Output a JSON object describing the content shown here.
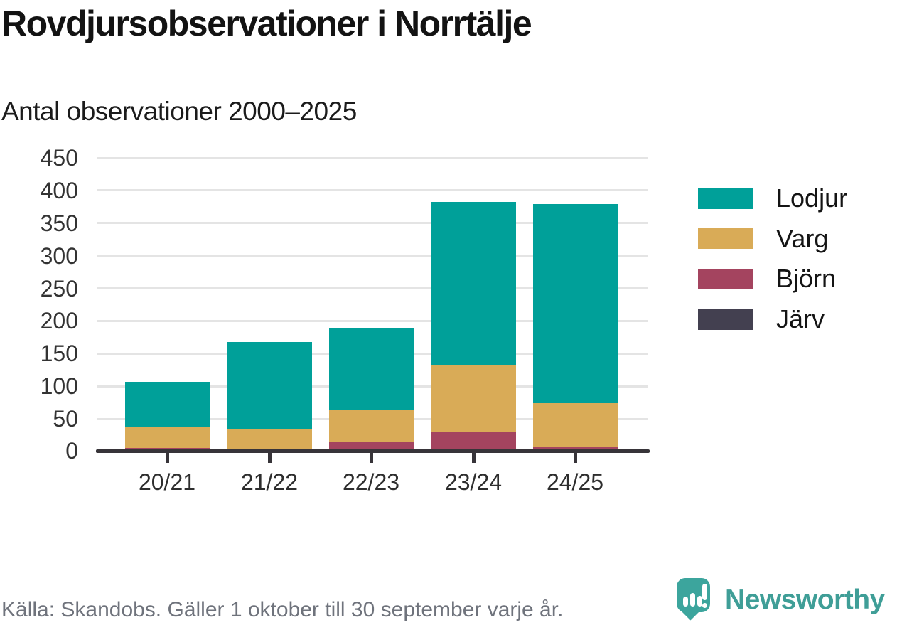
{
  "header": {
    "title": "Rovdjursobservationer i Norrtälje",
    "subtitle": "Antal observationer 2000–2025"
  },
  "chart_data": {
    "type": "bar",
    "stacked": true,
    "title": "Rovdjursobservationer i Norrtälje",
    "subtitle": "Antal observationer 2000–2025",
    "categories": [
      "20/21",
      "21/22",
      "22/23",
      "23/24",
      "24/25"
    ],
    "series": [
      {
        "name": "Lodjur",
        "color": "#00A099",
        "values": [
          69,
          134,
          127,
          250,
          305
        ]
      },
      {
        "name": "Varg",
        "color": "#D9AB57",
        "values": [
          33,
          32,
          48,
          103,
          66
        ]
      },
      {
        "name": "Björn",
        "color": "#A4445F",
        "values": [
          5,
          2,
          15,
          30,
          8
        ]
      },
      {
        "name": "Järv",
        "color": "#434050",
        "values": [
          0,
          0,
          0,
          0,
          0
        ]
      }
    ],
    "totals": [
      107,
      168,
      190,
      383,
      379
    ],
    "xlabel": "",
    "ylabel": "",
    "ylim": [
      0,
      450
    ],
    "yticks": [
      0,
      50,
      100,
      150,
      200,
      250,
      300,
      350,
      400,
      450
    ],
    "grid": true,
    "legend_position": "right",
    "stack_order_bottom_to_top": [
      "Järv",
      "Björn",
      "Varg",
      "Lodjur"
    ]
  },
  "footer": {
    "source": "Källa: Skandobs. Gäller 1 oktober till 30 september varje år.",
    "brand": "Newsworthy"
  },
  "colors": {
    "lodjur": "#00A099",
    "varg": "#D9AB57",
    "bjorn": "#A4445F",
    "jarv": "#434050",
    "axis": "#373439",
    "gridline": "#e4e4e4",
    "brand_teal": "#3F9E97",
    "footer_text": "#6f737c"
  }
}
